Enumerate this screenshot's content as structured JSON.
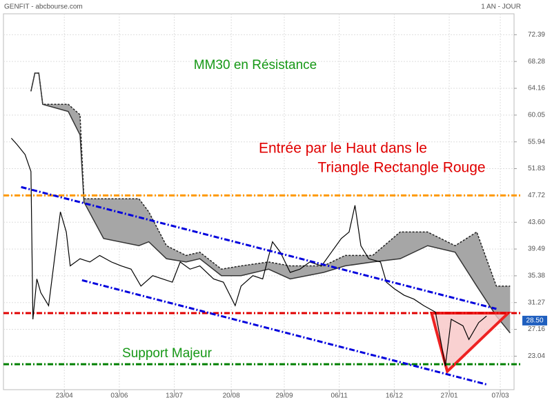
{
  "chart_data": {
    "type": "line",
    "title": "GENFIT - abcbourse.com",
    "subtitle": "1 AN - JOUR",
    "xlim": [
      0,
      260
    ],
    "xticks": [
      {
        "value": 31,
        "label": "23/04"
      },
      {
        "value": 59,
        "label": "03/06"
      },
      {
        "value": 87,
        "label": "13/07"
      },
      {
        "value": 116,
        "label": "20/08"
      },
      {
        "value": 143,
        "label": "29/09"
      },
      {
        "value": 171,
        "label": "06/11"
      },
      {
        "value": 199,
        "label": "16/12"
      },
      {
        "value": 227,
        "label": "27/01"
      },
      {
        "value": 253,
        "label": "07/03"
      }
    ],
    "ylim": [
      17.9,
      75.6
    ],
    "yticks": [
      23.04,
      27.16,
      31.27,
      35.38,
      39.49,
      {
        "value": 43.6,
        "label": "43.60"
      },
      47.72,
      51.83,
      55.94,
      60.05,
      64.16,
      68.28,
      72.39
    ],
    "grid": true,
    "series": [
      {
        "color": "#000000",
        "x": [
          4,
          7,
          11,
          14,
          15,
          17,
          19,
          23,
          26,
          29,
          32,
          34,
          39,
          44,
          49,
          55,
          60,
          65,
          70,
          76,
          81,
          86,
          90,
          95,
          100,
          107,
          112,
          118,
          121,
          127,
          132,
          137,
          141,
          146,
          151,
          156,
          162,
          167,
          172,
          176,
          179,
          182,
          186,
          192,
          195,
          199,
          204,
          209,
          214,
          220,
          225,
          228,
          234,
          237,
          242,
          246
        ],
        "values": [
          56.5,
          55.5,
          54,
          51.4,
          28.7,
          34.9,
          32.8,
          30.8,
          38,
          45.2,
          42.1,
          36.9,
          38,
          37.5,
          38.5,
          37.5,
          36.9,
          36.4,
          33.8,
          35.4,
          34.9,
          34.4,
          37.5,
          36.4,
          36.9,
          34.9,
          34.4,
          30.8,
          33.8,
          35.4,
          34.9,
          40.6,
          39,
          35.9,
          36.4,
          37.5,
          36.9,
          39,
          41.1,
          42.1,
          46.2,
          40,
          38,
          37.5,
          34.4,
          33.4,
          32.4,
          31.8,
          30.8,
          29.8,
          21.5,
          28.7,
          27.7,
          25.6,
          28.2,
          29.2
        ]
      }
    ],
    "cloud": {
      "color": "#a6a6a6",
      "x": [
        14,
        16,
        18,
        20,
        33,
        39,
        41,
        51,
        69,
        74,
        83,
        93,
        100,
        111,
        121,
        135,
        146,
        163,
        174,
        188,
        202,
        216,
        230,
        241,
        251,
        258
      ],
      "upper": [
        63.7,
        66.5,
        66.5,
        61.7,
        61.7,
        60.1,
        47.2,
        47.2,
        47.2,
        45.2,
        40,
        38.5,
        39,
        36.4,
        36.9,
        37.5,
        36.9,
        36.9,
        38.5,
        38.5,
        42.1,
        42.1,
        40,
        42.1,
        33.8,
        33.8
      ],
      "lower": [
        63.7,
        66.5,
        66.5,
        61.7,
        60.6,
        57,
        46.7,
        41.1,
        40,
        40.6,
        38,
        37.5,
        38,
        35.4,
        35.4,
        36.4,
        34.9,
        35.9,
        36.9,
        37.5,
        38,
        40,
        39,
        33.8,
        29.2,
        26.6
      ]
    },
    "hlines": [
      {
        "value": 47.72,
        "color": "#ff9900"
      },
      {
        "value": 29.65,
        "color": "#e00000"
      },
      {
        "value": 21.8,
        "color": "#008000"
      }
    ],
    "trendlines": [
      {
        "color": "#0000dd",
        "x": [
          9,
          251
        ],
        "y": [
          49.0,
          30.3
        ]
      },
      {
        "color": "#0000dd",
        "x": [
          40,
          246
        ],
        "y": [
          34.7,
          18.7
        ]
      }
    ],
    "triangle": {
      "color": "#ee2222",
      "fill": "#f7c6c6",
      "x": [
        218,
        257,
        226
      ],
      "y": [
        29.65,
        29.65,
        20.7
      ]
    },
    "last": {
      "value": 28.5,
      "label": "28.50",
      "color": "#1f5fbf"
    },
    "annotations": [
      {
        "text": "MM30 en  Résistance",
        "color": "#169816"
      },
      {
        "text": "Entrée par le Haut dans le",
        "color": "#e00000"
      },
      {
        "text": "Triangle Rectangle Rouge",
        "color": "#e00000"
      },
      {
        "text": "Support Majeur",
        "color": "#169816"
      }
    ]
  }
}
